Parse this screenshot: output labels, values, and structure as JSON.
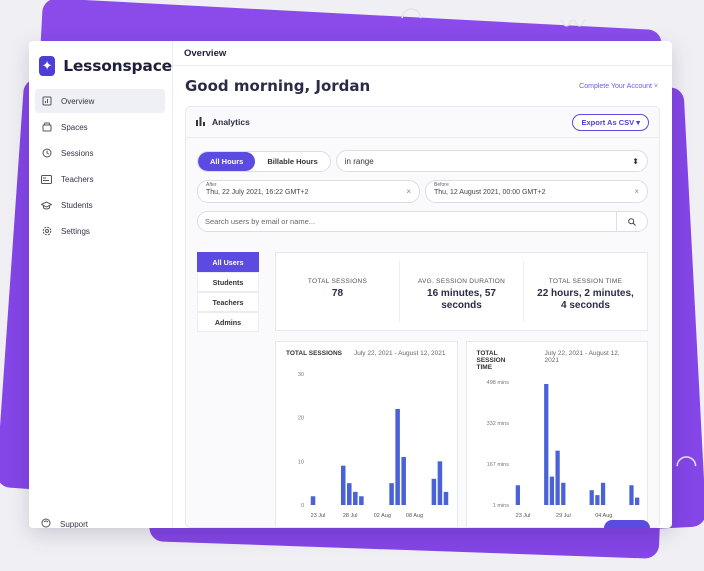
{
  "brand": {
    "name": "Lessonspace"
  },
  "sidebar": {
    "items": [
      {
        "label": "Overview",
        "icon": "overview-icon",
        "active": true
      },
      {
        "label": "Spaces",
        "icon": "spaces-icon"
      },
      {
        "label": "Sessions",
        "icon": "clock-icon"
      },
      {
        "label": "Teachers",
        "icon": "id-card-icon"
      },
      {
        "label": "Students",
        "icon": "graduation-cap-icon"
      },
      {
        "label": "Settings",
        "icon": "gear-icon"
      }
    ],
    "support": "Support"
  },
  "header": {
    "title": "Overview"
  },
  "main": {
    "greeting": "Good morning, Jordan",
    "complete_account": "Complete Your Account",
    "analytics": {
      "title": "Analytics",
      "export_label": "Export As CSV",
      "tabs": [
        "All Hours",
        "Billable Hours"
      ],
      "range_select": "in range",
      "after": {
        "label": "After",
        "value": "Thu, 22 July 2021, 16:22 GMT+2"
      },
      "before": {
        "label": "Before",
        "value": "Thu, 12 August 2021, 00:00 GMT+2"
      },
      "search_placeholder": "Search users by email or name...",
      "roles": [
        "All Users",
        "Students",
        "Teachers",
        "Admins"
      ],
      "stats": [
        {
          "label": "TOTAL SESSIONS",
          "value": "78"
        },
        {
          "label": "AVG. SESSION DURATION",
          "value": "16 minutes, 57 seconds"
        },
        {
          "label": "TOTAL SESSION TIME",
          "value": "22 hours, 2 minutes, 4 seconds"
        }
      ]
    }
  },
  "colors": {
    "accent": "#5b4be0",
    "bar": "#4a62d8",
    "brand_bg": "#8446e6"
  },
  "chart_data": [
    {
      "type": "bar",
      "title": "TOTAL SESSIONS",
      "range": "July 22, 2021 - August 12, 2021",
      "x_ticks": [
        "23 Jul",
        "28 Jul",
        "02 Aug",
        "08 Aug"
      ],
      "y_ticks": [
        "0",
        "10",
        "20",
        "30"
      ],
      "ylim": [
        0,
        30
      ],
      "values": [
        2,
        0,
        0,
        0,
        0,
        9,
        5,
        3,
        2,
        0,
        0,
        0,
        0,
        5,
        22,
        11,
        0,
        0,
        0,
        0,
        6,
        10,
        3
      ]
    },
    {
      "type": "bar",
      "title": "TOTAL SESSION TIME",
      "range": "July 22, 2021 - August 12, 2021",
      "x_ticks": [
        "23 Jul",
        "29 Jul",
        "04 Aug"
      ],
      "y_ticks": [
        "1 mins",
        "167 mins",
        "332 mins",
        "498 mins"
      ],
      "ylim": [
        0,
        498
      ],
      "values": [
        80,
        0,
        0,
        0,
        0,
        490,
        115,
        220,
        90,
        0,
        0,
        0,
        0,
        60,
        40,
        90,
        0,
        0,
        0,
        0,
        80,
        30
      ]
    }
  ]
}
